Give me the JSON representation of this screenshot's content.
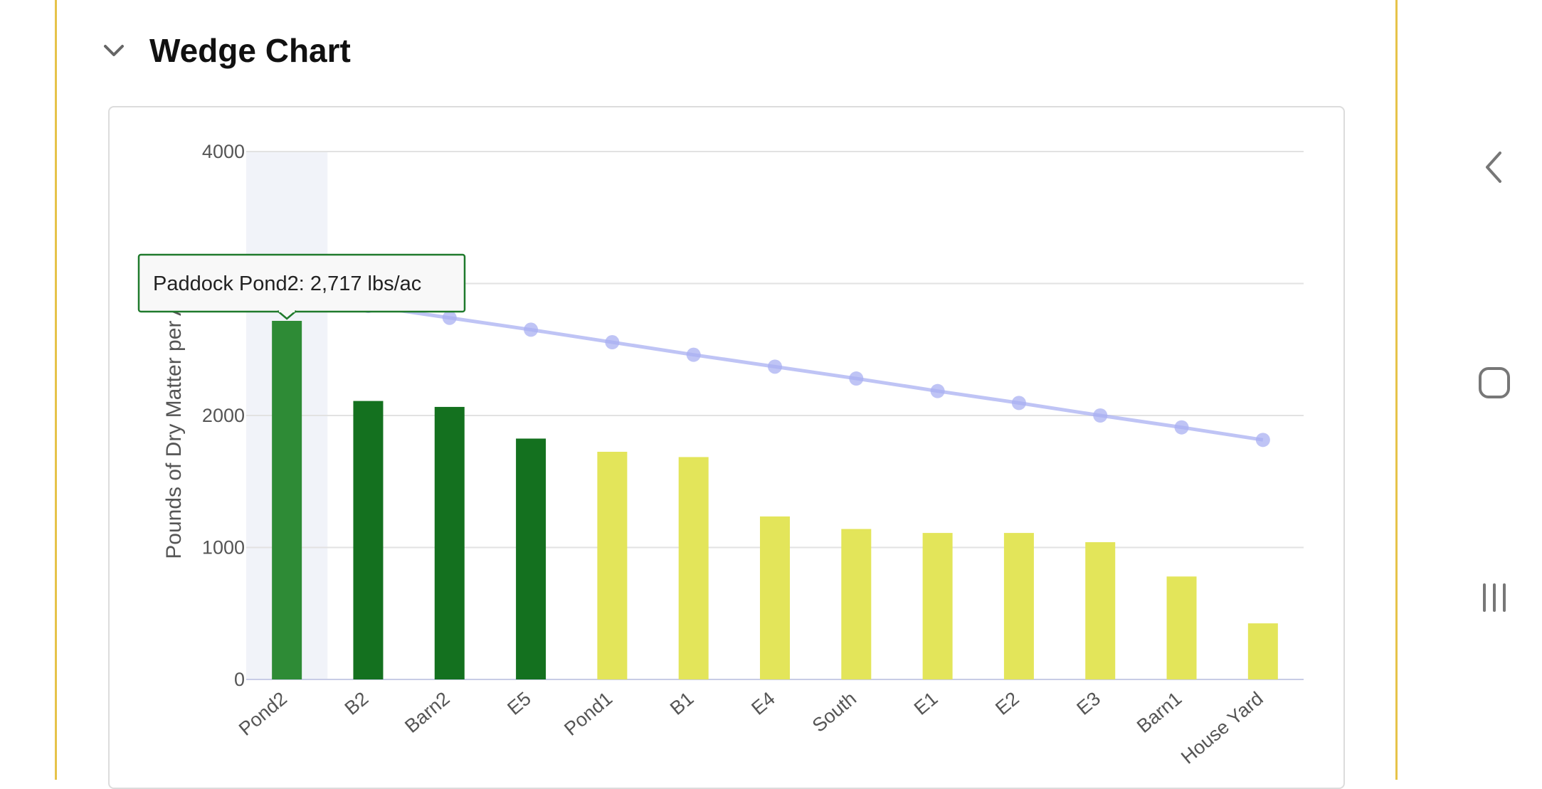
{
  "section": {
    "title": "Wedge Chart"
  },
  "chart_data": {
    "type": "bar",
    "categories": [
      "Pond2",
      "B2",
      "Barn2",
      "E5",
      "Pond1",
      "B1",
      "E4",
      "South",
      "E1",
      "E2",
      "E3",
      "Barn1",
      "House Yard"
    ],
    "values": [
      2717,
      2110,
      2065,
      1825,
      1725,
      1685,
      1235,
      1140,
      1110,
      1110,
      1040,
      780,
      425
    ],
    "bar_colors": [
      "#2e8b36",
      "#14711f",
      "#14711f",
      "#14711f",
      "#e3e55a",
      "#e3e55a",
      "#e3e55a",
      "#e3e55a",
      "#e3e55a",
      "#e3e55a",
      "#e3e55a",
      "#e3e55a",
      "#e3e55a"
    ],
    "line_series": {
      "type": "line",
      "values": [
        2920,
        2830,
        2740,
        2650,
        2555,
        2460,
        2370,
        2280,
        2185,
        2095,
        2000,
        1910,
        1815
      ],
      "color": "#aab0f2"
    },
    "ylabel": "Pounds of Dry Matter per Acre",
    "xlabel": "",
    "ylim": [
      0,
      4000
    ],
    "yticks": [
      0,
      1000,
      2000,
      3000,
      4000
    ],
    "grid": true,
    "highlight_category_index": 0,
    "tooltip": "Paddock Pond2: 2,717 lbs/ac"
  },
  "nav": {
    "back_icon": "chevron-left-icon",
    "home_icon": "square-home-icon",
    "recents_icon": "recents-bars-icon"
  }
}
